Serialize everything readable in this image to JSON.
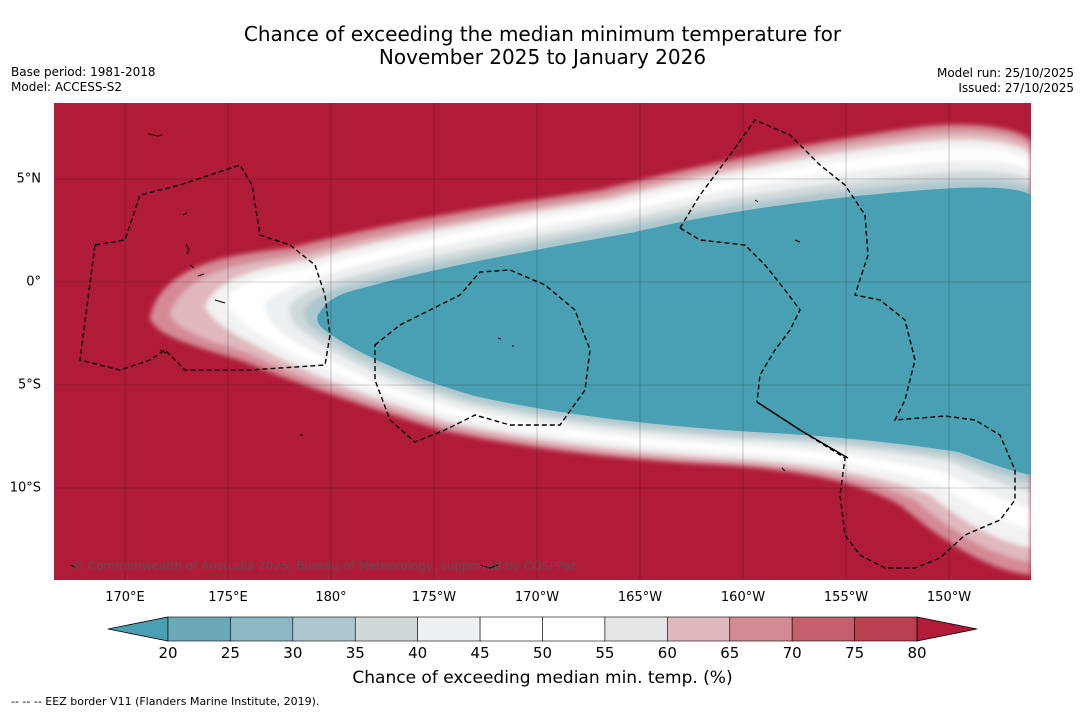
{
  "title": {
    "line1": "Chance of exceeding the median minimum temperature for",
    "line2": "November 2025 to January 2026"
  },
  "meta_left": {
    "base_period": "Base period: 1981-2018",
    "model": "Model: ACCESS-S2"
  },
  "meta_right": {
    "model_run": "Model run: 25/10/2025",
    "issued": "Issued: 27/10/2025"
  },
  "map": {
    "copyright": "© Commonwealth of Australia 2025, Bureau of Meteorology, supported by COSPPac",
    "lon_labels": [
      "170°E",
      "175°E",
      "180°",
      "175°W",
      "170°W",
      "165°W",
      "160°W",
      "155°W",
      "150°W"
    ],
    "lat_labels": [
      "5°N",
      "0°",
      "5°S",
      "10°S"
    ],
    "colors": {
      "below": "#49a0b2",
      "above": "#b01c38"
    }
  },
  "colorbar": {
    "ticks": [
      "20",
      "25",
      "30",
      "35",
      "40",
      "45",
      "50",
      "55",
      "60",
      "65",
      "70",
      "75",
      "80"
    ],
    "colors": [
      "#49a0b2",
      "#6aaab8",
      "#8bb8c4",
      "#acc8ce",
      "#d0d8da",
      "#ecf0f2",
      "#ffffff",
      "#ffffff",
      "#e6e6e6",
      "#e0b8be",
      "#d48a94",
      "#c4606e",
      "#b8404f",
      "#b01c38"
    ],
    "label": "Chance of exceeding median min. temp. (%)"
  },
  "footer": "--  --  -- EEZ border V11 (Flanders Marine Institute, 2019)."
}
